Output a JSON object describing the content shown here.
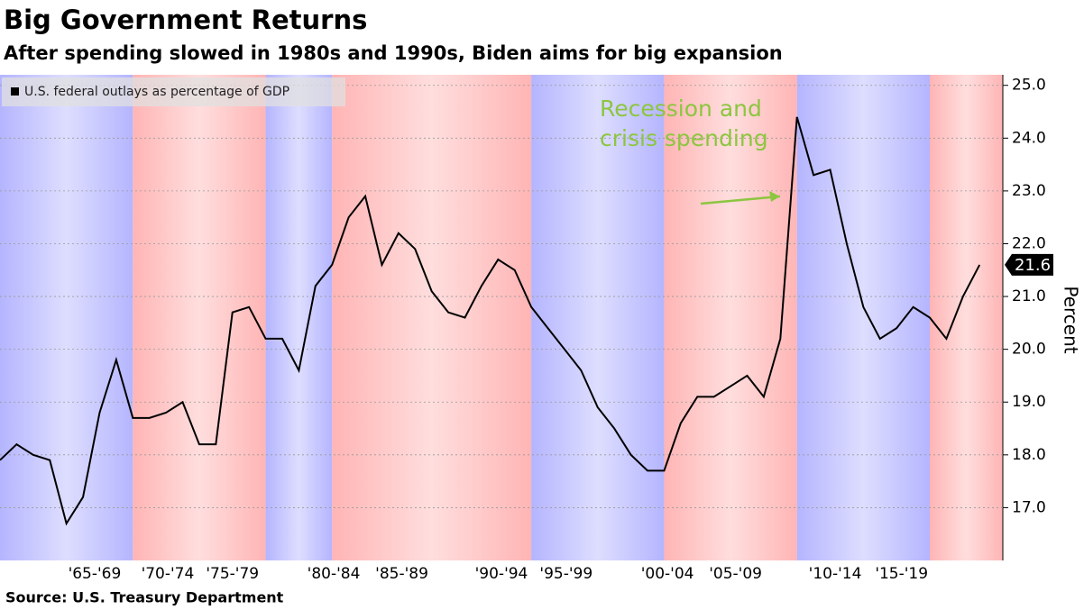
{
  "chart_data": {
    "type": "line",
    "title": "Big Government Returns",
    "subtitle": "After spending slowed in 1980s and 1990s, Biden aims for big expansion",
    "source": "Source: U.S. Treasury Department",
    "y_label": "Percent",
    "annotation": [
      "Recession and",
      "crisis spending"
    ],
    "x": [
      1961,
      1962,
      1963,
      1964,
      1965,
      1966,
      1967,
      1968,
      1969,
      1970,
      1971,
      1972,
      1973,
      1974,
      1975,
      1976,
      1977,
      1978,
      1979,
      1980,
      1981,
      1982,
      1983,
      1984,
      1985,
      1986,
      1987,
      1988,
      1989,
      1990,
      1991,
      1992,
      1993,
      1994,
      1995,
      1996,
      1997,
      1998,
      1999,
      2000,
      2001,
      2002,
      2003,
      2004,
      2005,
      2006,
      2007,
      2008,
      2009,
      2010,
      2011,
      2012,
      2013,
      2014,
      2015,
      2016,
      2017,
      2018,
      2019,
      2020
    ],
    "series": [
      {
        "name": "U.S. federal outlays as percentage of GDP",
        "color": "#000000",
        "values": [
          17.9,
          18.2,
          18.0,
          17.9,
          16.7,
          17.2,
          18.8,
          19.8,
          18.7,
          18.7,
          18.8,
          19.0,
          18.2,
          18.2,
          20.7,
          20.8,
          20.2,
          20.2,
          19.6,
          21.2,
          21.6,
          22.5,
          22.9,
          21.6,
          22.2,
          21.9,
          21.1,
          20.7,
          20.6,
          21.2,
          21.7,
          21.5,
          20.8,
          20.4,
          20.0,
          19.6,
          18.9,
          18.5,
          18.0,
          17.7,
          17.7,
          18.6,
          19.1,
          19.1,
          19.3,
          19.5,
          19.1,
          20.2,
          24.4,
          23.3,
          23.4,
          22.0,
          20.8,
          20.2,
          20.4,
          20.8,
          20.6,
          20.2,
          21.0,
          21.6
        ],
        "last_label": "21.6"
      }
    ],
    "bands": [
      {
        "start": 1961,
        "end": 1969,
        "color": "#9c9cff"
      },
      {
        "start": 1969,
        "end": 1977,
        "color": "#ff9c9c"
      },
      {
        "start": 1977,
        "end": 1981,
        "color": "#9c9cff"
      },
      {
        "start": 1981,
        "end": 1993,
        "color": "#ff9c9c"
      },
      {
        "start": 1993,
        "end": 2001,
        "color": "#9c9cff"
      },
      {
        "start": 2001,
        "end": 2009,
        "color": "#ff9c9c"
      },
      {
        "start": 2009,
        "end": 2017,
        "color": "#9c9cff"
      },
      {
        "start": 2017,
        "end": 2021.4,
        "color": "#ff9c9c"
      }
    ],
    "xlim": [
      1961,
      2021.4
    ],
    "xticks": [
      {
        "value": 1966.7,
        "label": "'65-'69"
      },
      {
        "value": 1971.1,
        "label": "'70-'74"
      },
      {
        "value": 1975,
        "label": "'75-'79"
      },
      {
        "value": 1981.1,
        "label": "'80-'84"
      },
      {
        "value": 1985.2,
        "label": "'85-'89"
      },
      {
        "value": 1991.2,
        "label": "'90-'94"
      },
      {
        "value": 1995.1,
        "label": "'95-'99"
      },
      {
        "value": 2001.2,
        "label": "'00-'04"
      },
      {
        "value": 2005.3,
        "label": "'05-'09"
      },
      {
        "value": 2011.3,
        "label": "'10-'14"
      },
      {
        "value": 2015.3,
        "label": "'15-'19"
      }
    ],
    "ylim": [
      16,
      25.2
    ],
    "yticks": [
      {
        "value": 17,
        "label": "17.0"
      },
      {
        "value": 18,
        "label": "18.0"
      },
      {
        "value": 19,
        "label": "19.0"
      },
      {
        "value": 20,
        "label": "20.0"
      },
      {
        "value": 21,
        "label": "21.0"
      },
      {
        "value": 22,
        "label": "22.0"
      },
      {
        "value": 23,
        "label": "23.0"
      },
      {
        "value": 24,
        "label": "24.0"
      },
      {
        "value": 25,
        "label": "25.0"
      }
    ],
    "grid": true
  }
}
